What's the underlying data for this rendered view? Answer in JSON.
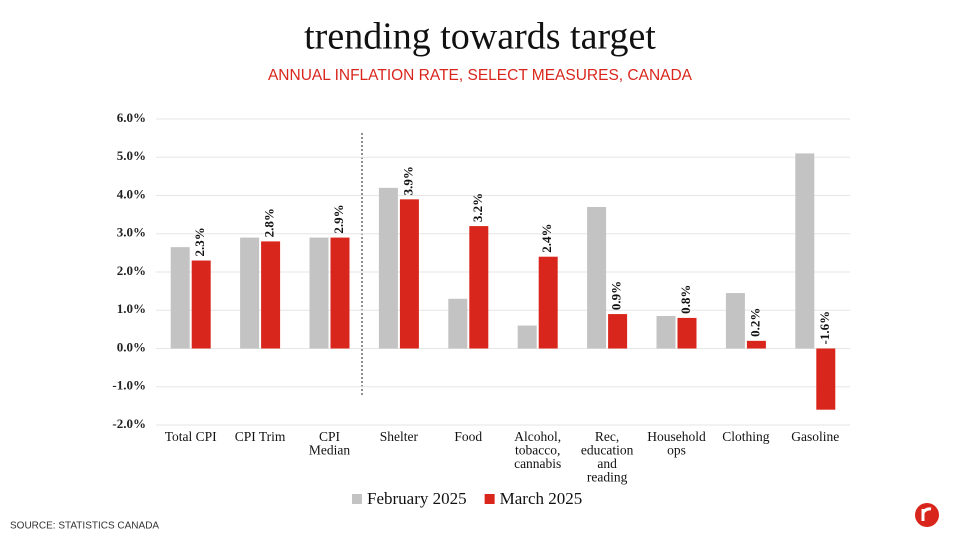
{
  "chart_data": {
    "type": "bar",
    "title": "trending towards target",
    "subtitle": "ANNUAL INFLATION RATE, SELECT MEASURES, CANADA",
    "source": "SOURCE: STATISTICS CANADA",
    "categories": [
      "Total CPI",
      "CPI Trim",
      "CPI Median",
      "Shelter",
      "Food",
      "Alcohol, tobacco, cannabis",
      "Rec, education and reading",
      "Household ops",
      "Clothing",
      "Gasoline"
    ],
    "series": [
      {
        "name": "February 2025",
        "color": "#c3c3c3",
        "values": [
          2.65,
          2.9,
          2.9,
          4.2,
          1.3,
          0.6,
          3.7,
          0.85,
          1.45,
          5.1
        ]
      },
      {
        "name": "March 2025",
        "color": "#d9261c",
        "values": [
          2.3,
          2.8,
          2.9,
          3.9,
          3.2,
          2.4,
          0.9,
          0.8,
          0.2,
          -1.6
        ],
        "value_labels": [
          "2.3%",
          "2.8%",
          "2.9%",
          "3.9%",
          "3.2%",
          "2.4%",
          "0.9%",
          "0.8%",
          "0.2%",
          "-1.6%"
        ]
      }
    ],
    "ylim": [
      -2,
      6
    ],
    "yticks": [
      {
        "value": -2,
        "label": "-2.0%"
      },
      {
        "value": -1,
        "label": "-1.0%"
      },
      {
        "value": 0,
        "label": "0.0%"
      },
      {
        "value": 1,
        "label": "1.0%"
      },
      {
        "value": 2,
        "label": "2.0%"
      },
      {
        "value": 3,
        "label": "3.0%"
      },
      {
        "value": 4,
        "label": "4.0%"
      },
      {
        "value": 5,
        "label": "5.0%"
      },
      {
        "value": 6,
        "label": "6.0%"
      }
    ],
    "grid": true,
    "legend": "bottom"
  }
}
